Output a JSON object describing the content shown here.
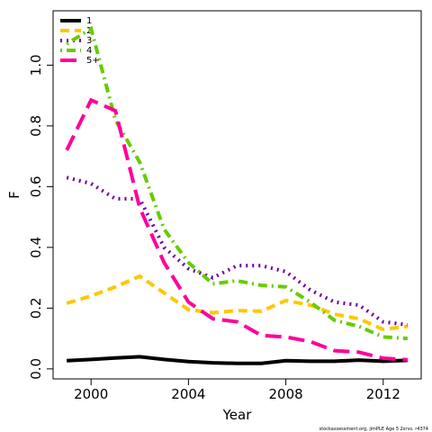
{
  "chart_data": {
    "type": "line",
    "x_label": "Year",
    "y_label": "F",
    "caption": "stockassessment.org, jimPLE  Age 5  2srvs. r4374",
    "x": [
      1999,
      2000,
      2001,
      2002,
      2003,
      2004,
      2005,
      2006,
      2007,
      2008,
      2009,
      2010,
      2011,
      2012,
      2013
    ],
    "series": [
      {
        "name": "1",
        "color": "#000000",
        "values": [
          0.027,
          0.031,
          0.036,
          0.04,
          0.031,
          0.024,
          0.02,
          0.018,
          0.018,
          0.027,
          0.025,
          0.025,
          0.029,
          0.025,
          0.028
        ]
      },
      {
        "name": "2",
        "color": "#ffc700",
        "values": [
          0.216,
          0.24,
          0.27,
          0.305,
          0.25,
          0.195,
          0.185,
          0.192,
          0.19,
          0.225,
          0.21,
          0.18,
          0.165,
          0.13,
          0.14
        ]
      },
      {
        "name": "3",
        "color": "#6a00a0",
        "values": [
          0.63,
          0.61,
          0.56,
          0.56,
          0.4,
          0.33,
          0.3,
          0.34,
          0.34,
          0.32,
          0.26,
          0.22,
          0.21,
          0.155,
          0.145
        ]
      },
      {
        "name": "4",
        "color": "#66cc00",
        "values": [
          1.07,
          1.12,
          0.82,
          0.68,
          0.46,
          0.35,
          0.28,
          0.29,
          0.275,
          0.27,
          0.22,
          0.16,
          0.14,
          0.105,
          0.1
        ]
      },
      {
        "name": "5+",
        "color": "#ff0099",
        "values": [
          0.72,
          0.885,
          0.85,
          0.53,
          0.35,
          0.22,
          0.165,
          0.155,
          0.11,
          0.105,
          0.09,
          0.06,
          0.055,
          0.035,
          0.03
        ]
      }
    ],
    "xlim": [
      1998.44,
      2013.56
    ],
    "ylim": [
      -0.033,
      1.179
    ],
    "xticks": [
      2000,
      2004,
      2008,
      2012
    ],
    "yticks": [
      {
        "value": 0,
        "label": "0.0"
      },
      0.2,
      0.4,
      0.6,
      0.8,
      {
        "value": 1,
        "label": "1.0"
      }
    ],
    "legend": "top-left"
  }
}
